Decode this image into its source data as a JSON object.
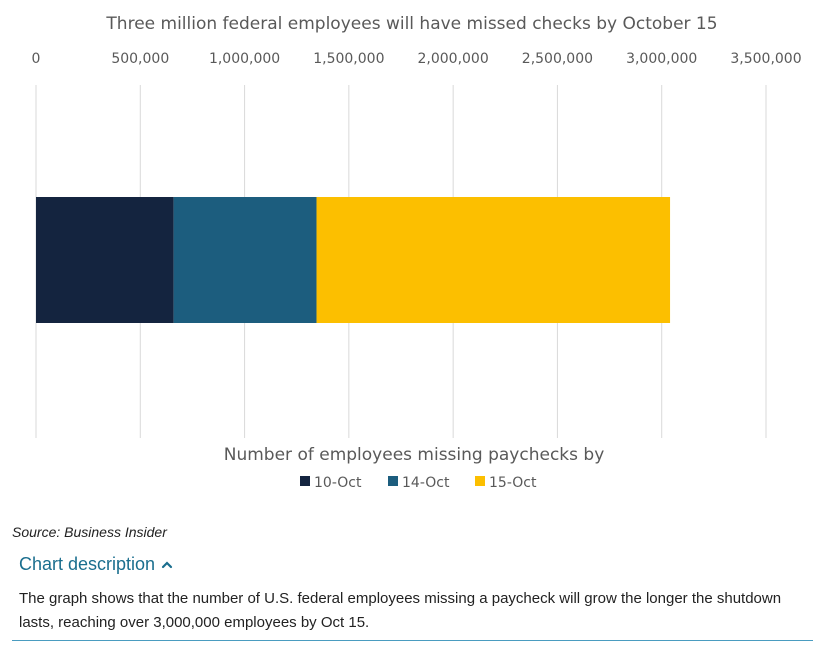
{
  "chart_data": {
    "type": "bar",
    "orientation": "horizontal",
    "stacked": true,
    "title": "Three million federal employees will have missed checks by October 15",
    "xlabel": "Number of employees missing paychecks by",
    "ylabel": "",
    "xlim": [
      0,
      3500000
    ],
    "ticks": [
      "0",
      "500,000",
      "1,000,000",
      "1,500,000",
      "2,000,000",
      "2,500,000",
      "3,000,000",
      "3,500,000"
    ],
    "tick_values": [
      0,
      500000,
      1000000,
      1500000,
      2000000,
      2500000,
      3000000,
      3500000
    ],
    "axis_position": "top",
    "grid": true,
    "legend_position": "bottom",
    "series": [
      {
        "name": "10-Oct",
        "value": 660000,
        "color": "#14243f"
      },
      {
        "name": "14-Oct",
        "value": 685000,
        "color": "#1c5d7e"
      },
      {
        "name": "15-Oct",
        "value": 1695000,
        "color": "#fcbf00"
      }
    ]
  },
  "source_text": "Source: Business Insider",
  "description": {
    "toggle_label": "Chart description",
    "text": "The graph shows that the number of U.S. federal employees missing a paycheck will grow the longer the shutdown lasts, reaching over 3,000,000 employees by Oct 15."
  }
}
